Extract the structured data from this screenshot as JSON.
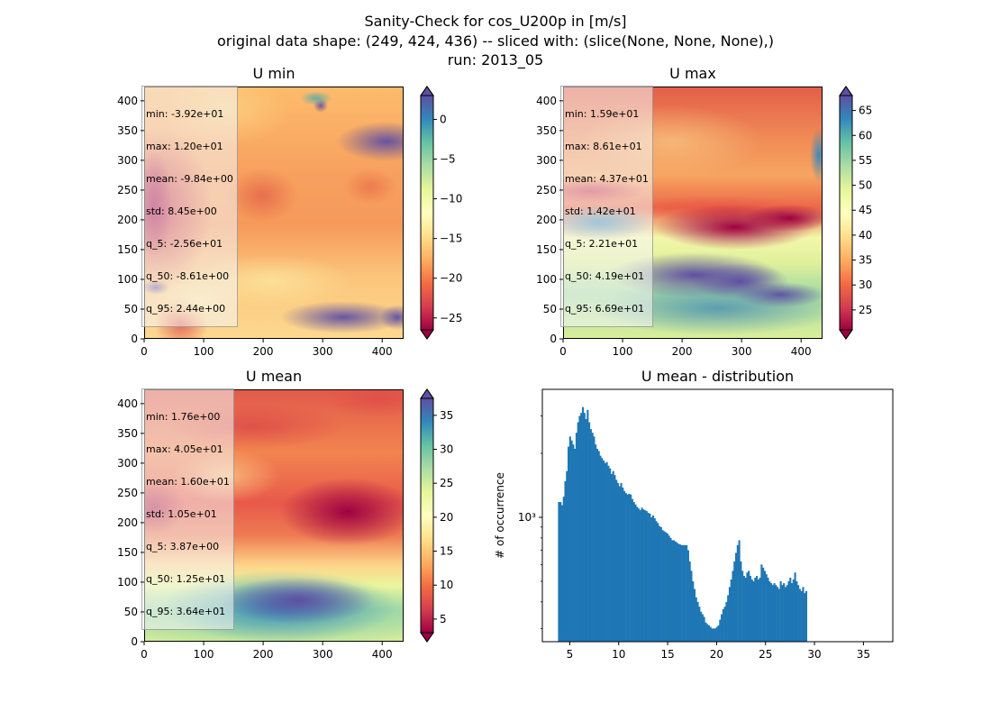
{
  "figure": {
    "title_line1": "Sanity-Check for cos_U200p in [m/s]",
    "title_line2": "original data shape: (249, 424, 436) -- sliced with: (slice(None, None, None),)",
    "title_line3": "run: 2013_05"
  },
  "chart_data": [
    {
      "type": "heatmap",
      "title": "U min",
      "colormap": "Spectral",
      "colorbar_range": [
        -26.5,
        3
      ],
      "colorbar_ticks": [
        "0",
        "−5",
        "−10",
        "−15",
        "−20",
        "−25"
      ],
      "colorbar_tick_values": [
        0,
        -5,
        -10,
        -15,
        -20,
        -25
      ],
      "xlim": [
        0,
        436
      ],
      "ylim": [
        0,
        424
      ],
      "x_ticks": [
        "0",
        "100",
        "200",
        "300",
        "400"
      ],
      "y_ticks": [
        "0",
        "50",
        "100",
        "150",
        "200",
        "250",
        "300",
        "350",
        "400"
      ],
      "stats": [
        "min: -3.92e+01",
        "max: 1.20e+01",
        "mean: -9.84e+00",
        "std: 8.45e+00",
        "q_5: -2.56e+01",
        "q_50: -8.61e+00",
        "q_95: 2.44e+00"
      ]
    },
    {
      "type": "heatmap",
      "title": "U max",
      "colormap": "Spectral",
      "colorbar_range": [
        21,
        68
      ],
      "colorbar_ticks": [
        "25",
        "30",
        "35",
        "40",
        "45",
        "50",
        "55",
        "60",
        "65"
      ],
      "colorbar_tick_values": [
        25,
        30,
        35,
        40,
        45,
        50,
        55,
        60,
        65
      ],
      "xlim": [
        0,
        436
      ],
      "ylim": [
        0,
        424
      ],
      "x_ticks": [
        "0",
        "100",
        "200",
        "300",
        "400"
      ],
      "y_ticks": [
        "0",
        "50",
        "100",
        "150",
        "200",
        "250",
        "300",
        "350",
        "400"
      ],
      "stats": [
        "min: 1.59e+01",
        "max: 8.61e+01",
        "mean: 4.37e+01",
        "std: 1.42e+01",
        "q_5: 2.21e+01",
        "q_50: 4.19e+01",
        "q_95: 6.69e+01"
      ]
    },
    {
      "type": "heatmap",
      "title": "U mean",
      "colormap": "Spectral",
      "colorbar_range": [
        3,
        37.5
      ],
      "colorbar_ticks": [
        "5",
        "10",
        "15",
        "20",
        "25",
        "30",
        "35"
      ],
      "colorbar_tick_values": [
        5,
        10,
        15,
        20,
        25,
        30,
        35
      ],
      "xlim": [
        0,
        436
      ],
      "ylim": [
        0,
        424
      ],
      "x_ticks": [
        "0",
        "100",
        "200",
        "300",
        "400"
      ],
      "y_ticks": [
        "0",
        "50",
        "100",
        "150",
        "200",
        "250",
        "300",
        "350",
        "400"
      ],
      "stats": [
        "min: 1.76e+00",
        "max: 4.05e+01",
        "mean: 1.60e+01",
        "std: 1.05e+01",
        "q_5: 3.87e+00",
        "q_50: 1.25e+01",
        "q_95: 3.64e+01"
      ]
    },
    {
      "type": "bar",
      "title": "U mean - distribution",
      "ylabel": "# of occurrence",
      "yscale": "log",
      "xlim": [
        2.2,
        38.0
      ],
      "ylim": [
        260,
        4000
      ],
      "bar_color": "#1f77b4",
      "x_ticks": [
        "5",
        "10",
        "15",
        "20",
        "25",
        "30",
        "35"
      ],
      "x_tick_values": [
        5,
        10,
        15,
        20,
        25,
        30,
        35
      ],
      "y_tick_label": "10³",
      "y_tick_value": 1000,
      "bin_start": 3.8,
      "bin_width": 0.163,
      "counts": [
        1180,
        1180,
        1140,
        1250,
        1480,
        1650,
        2150,
        2400,
        2300,
        2200,
        2100,
        2500,
        2800,
        3000,
        3100,
        3300,
        3100,
        2900,
        3200,
        2800,
        2600,
        2500,
        2400,
        2200,
        2100,
        2050,
        1950,
        1900,
        1850,
        1800,
        1820,
        1750,
        1700,
        1600,
        1650,
        1580,
        1500,
        1450,
        1400,
        1450,
        1380,
        1330,
        1300,
        1280,
        1290,
        1280,
        1220,
        1180,
        1150,
        1120,
        1100,
        1080,
        1110,
        1090,
        1080,
        1070,
        1050,
        1040,
        1000,
        1020,
        990,
        960,
        940,
        910,
        900,
        870,
        860,
        850,
        840,
        820,
        800,
        780,
        780,
        770,
        760,
        750,
        745,
        740,
        740,
        740,
        740,
        700,
        620,
        560,
        500,
        460,
        420,
        400,
        380,
        360,
        350,
        340,
        320,
        315,
        310,
        305,
        300,
        300,
        300,
        305,
        310,
        330,
        350,
        370,
        380,
        400,
        430,
        470,
        510,
        560,
        620,
        680,
        740,
        780,
        620,
        560,
        530,
        520,
        550,
        560,
        530,
        510,
        500,
        520,
        530,
        510,
        520,
        600,
        580,
        560,
        540,
        520,
        500,
        490,
        480,
        490,
        480,
        470,
        460,
        500,
        480,
        490,
        470,
        480,
        500,
        520,
        490,
        510,
        550,
        500,
        480,
        460,
        450,
        470,
        440,
        450
      ]
    }
  ]
}
